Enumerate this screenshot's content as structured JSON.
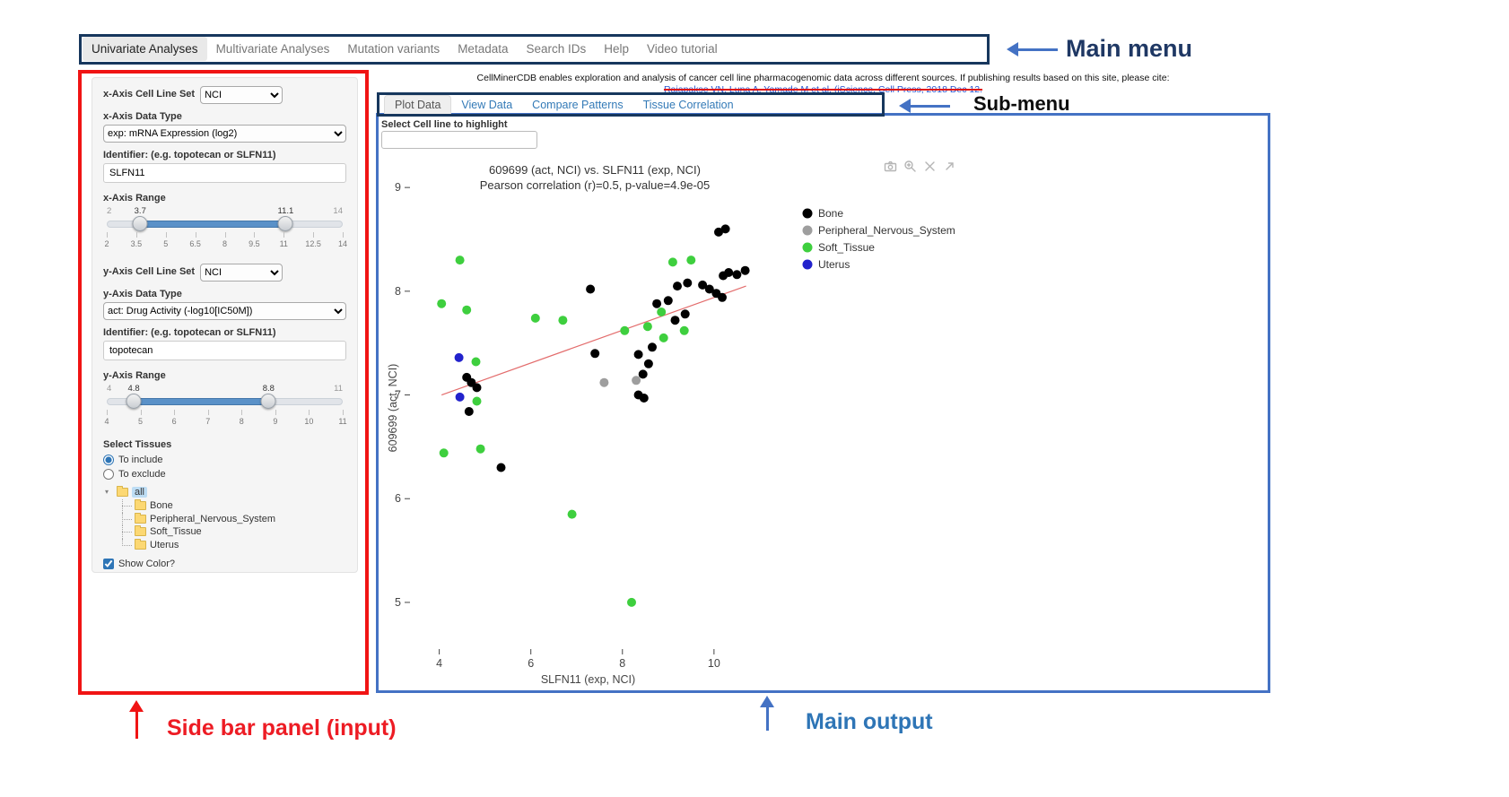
{
  "annotations": {
    "main_menu": "Main menu",
    "sub_menu": "Sub-menu",
    "sidebar": "Side bar panel (input)",
    "main_output": "Main output"
  },
  "main_menu": {
    "items": [
      {
        "label": "Univariate Analyses",
        "active": true
      },
      {
        "label": "Multivariate Analyses",
        "active": false
      },
      {
        "label": "Mutation variants",
        "active": false
      },
      {
        "label": "Metadata",
        "active": false
      },
      {
        "label": "Search IDs",
        "active": false
      },
      {
        "label": "Help",
        "active": false
      },
      {
        "label": "Video tutorial",
        "active": false
      }
    ]
  },
  "header": {
    "description": "CellMinerCDB enables exploration and analysis of cancer cell line pharmacogenomic data across different sources. If publishing results based on this site, please cite:",
    "citation": "Rajapakse VN, Luna A, Yamade M et al. (iScience, Cell Press, 2018 Dec 12."
  },
  "sidebar": {
    "x_axis": {
      "cell_line_set_label": "x-Axis Cell Line Set",
      "cell_line_set_value": "NCI",
      "data_type_label": "x-Axis Data Type",
      "data_type_value": "exp: mRNA Expression (log2)",
      "identifier_label": "Identifier: (e.g. topotecan or SLFN11)",
      "identifier_value": "SLFN11",
      "range_label": "x-Axis Range",
      "range": {
        "min": 2,
        "max": 14,
        "from": 3.7,
        "to": 11.1,
        "ticks": [
          2,
          3.5,
          5,
          6.5,
          8,
          9.5,
          11,
          12.5,
          14
        ]
      }
    },
    "y_axis": {
      "cell_line_set_label": "y-Axis Cell Line Set",
      "cell_line_set_value": "NCI",
      "data_type_label": "y-Axis Data Type",
      "data_type_value": "act: Drug Activity (-log10[IC50M])",
      "identifier_label": "Identifier: (e.g. topotecan or SLFN11)",
      "identifier_value": "topotecan",
      "range_label": "y-Axis Range",
      "range": {
        "min": 4,
        "max": 11,
        "from": 4.8,
        "to": 8.8,
        "ticks": [
          4,
          5,
          6,
          7,
          8,
          9,
          10,
          11
        ]
      }
    },
    "tissues": {
      "label": "Select Tissues",
      "include_label": "To include",
      "exclude_label": "To exclude",
      "include_selected": true,
      "tree_all": {
        "root": "all",
        "children": [
          "Bone",
          "Peripheral_Nervous_System",
          "Soft_Tissue",
          "Uterus"
        ]
      },
      "show_color_label": "Show Color?",
      "show_color_checked": true,
      "tree_selection": {
        "root": "no_selection",
        "children": [
          "Bone",
          "Peripheral_Nervous_System",
          "Soft_Tissue",
          "Uterus"
        ]
      }
    }
  },
  "submenu": {
    "tabs": [
      {
        "label": "Plot Data",
        "active": true
      },
      {
        "label": "View Data",
        "active": false
      },
      {
        "label": "Compare Patterns",
        "active": false
      },
      {
        "label": "Tissue Correlation",
        "active": false
      }
    ]
  },
  "main_output": {
    "highlight_label": "Select Cell line to highlight",
    "highlight_value": ""
  },
  "modebar": {
    "icons": [
      "camera",
      "zoom-in",
      "close",
      "share"
    ]
  },
  "chart_data": {
    "type": "scatter",
    "title": "609699 (act, NCI) vs. SLFN11 (exp, NCI)",
    "subtitle": "Pearson correlation (r)=0.5, p-value=4.9e-05",
    "xlabel": "SLFN11 (exp, NCI)",
    "ylabel": "609699 (act, NCI)",
    "xlim": [
      3.4,
      11.1
    ],
    "ylim": [
      4.55,
      9.2
    ],
    "xticks": [
      4,
      6,
      8,
      10
    ],
    "yticks": [
      5,
      6,
      7,
      8,
      9
    ],
    "grid": false,
    "legend_position": "right",
    "regression_line": {
      "x1": 4.05,
      "y1": 7.0,
      "x2": 10.7,
      "y2": 8.05,
      "color": "#e36c6c"
    },
    "series": [
      {
        "name": "Bone",
        "color": "#000000",
        "points": [
          [
            10.1,
            8.57
          ],
          [
            10.25,
            8.6
          ],
          [
            10.2,
            8.15
          ],
          [
            10.32,
            8.18
          ],
          [
            10.5,
            8.16
          ],
          [
            10.68,
            8.2
          ],
          [
            9.2,
            8.05
          ],
          [
            9.42,
            8.08
          ],
          [
            9.75,
            8.06
          ],
          [
            9.9,
            8.02
          ],
          [
            10.05,
            7.98
          ],
          [
            10.18,
            7.94
          ],
          [
            7.3,
            8.02
          ],
          [
            8.75,
            7.88
          ],
          [
            9.0,
            7.91
          ],
          [
            9.37,
            7.78
          ],
          [
            9.15,
            7.72
          ],
          [
            8.65,
            7.46
          ],
          [
            8.35,
            7.39
          ],
          [
            8.57,
            7.3
          ],
          [
            8.45,
            7.2
          ],
          [
            7.4,
            7.4
          ],
          [
            8.35,
            7.0
          ],
          [
            8.47,
            6.97
          ],
          [
            4.6,
            7.17
          ],
          [
            4.7,
            7.12
          ],
          [
            4.82,
            7.07
          ],
          [
            4.65,
            6.84
          ],
          [
            5.35,
            6.3
          ]
        ]
      },
      {
        "name": "Peripheral_Nervous_System",
        "color": "#9e9e9e",
        "points": [
          [
            7.6,
            7.12
          ],
          [
            8.3,
            7.14
          ]
        ]
      },
      {
        "name": "Soft_Tissue",
        "color": "#3ecf3e",
        "points": [
          [
            4.45,
            8.3
          ],
          [
            4.05,
            7.88
          ],
          [
            4.6,
            7.82
          ],
          [
            6.1,
            7.74
          ],
          [
            6.7,
            7.72
          ],
          [
            9.1,
            8.28
          ],
          [
            9.5,
            8.3
          ],
          [
            8.85,
            7.8
          ],
          [
            8.55,
            7.66
          ],
          [
            8.05,
            7.62
          ],
          [
            8.9,
            7.55
          ],
          [
            9.35,
            7.62
          ],
          [
            4.8,
            7.32
          ],
          [
            4.82,
            6.94
          ],
          [
            4.1,
            6.44
          ],
          [
            4.9,
            6.48
          ],
          [
            6.9,
            5.85
          ],
          [
            8.2,
            5.0
          ]
        ]
      },
      {
        "name": "Uterus",
        "color": "#2222cc",
        "points": [
          [
            4.43,
            7.36
          ],
          [
            4.45,
            6.98
          ]
        ]
      }
    ]
  }
}
